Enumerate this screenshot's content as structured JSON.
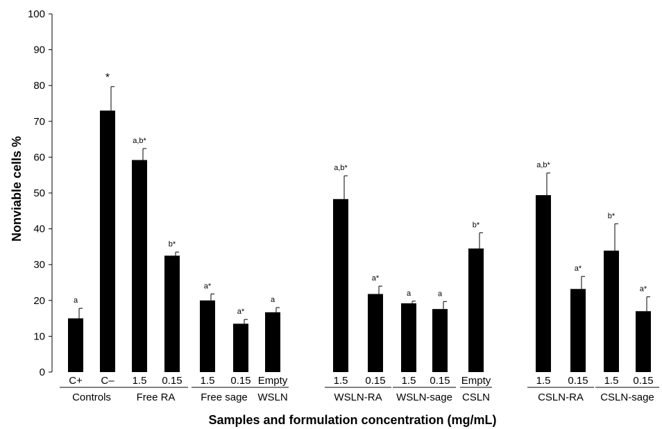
{
  "chart_data": {
    "type": "bar",
    "title": "",
    "xlabel": "Samples and formulation concentration (mg/mL)",
    "ylabel": "Nonviable cells %",
    "ylim": [
      0,
      100
    ],
    "yticks": [
      0,
      10,
      20,
      30,
      40,
      50,
      60,
      70,
      80,
      90,
      100
    ],
    "grid": false,
    "bars": [
      {
        "label": "C+",
        "value": 15.0,
        "error": 2.8,
        "annotation": "a"
      },
      {
        "label": "C–",
        "value": 73.0,
        "error": 6.7,
        "annotation": "*"
      },
      {
        "label": "1.5",
        "value": 59.2,
        "error": 3.2,
        "annotation": "a,b*"
      },
      {
        "label": "0.15",
        "value": 32.5,
        "error": 1.0,
        "annotation": "b*"
      },
      {
        "label": "1.5",
        "value": 20.0,
        "error": 1.8,
        "annotation": "a*"
      },
      {
        "label": "0.15",
        "value": 13.5,
        "error": 1.2,
        "annotation": "a*"
      },
      {
        "label": "Empty",
        "value": 16.7,
        "error": 1.3,
        "annotation": "a"
      },
      {
        "label": "1.5",
        "value": 48.3,
        "error": 6.5,
        "annotation": "a,b*"
      },
      {
        "label": "0.15",
        "value": 21.8,
        "error": 2.2,
        "annotation": "a*"
      },
      {
        "label": "1.5",
        "value": 19.2,
        "error": 0.6,
        "annotation": "a"
      },
      {
        "label": "0.15",
        "value": 17.6,
        "error": 2.1,
        "annotation": "a"
      },
      {
        "label": "Empty",
        "value": 34.5,
        "error": 4.4,
        "annotation": "b*"
      },
      {
        "label": "1.5",
        "value": 49.4,
        "error": 6.2,
        "annotation": "a,b*"
      },
      {
        "label": "0.15",
        "value": 23.2,
        "error": 3.5,
        "annotation": "a*"
      },
      {
        "label": "1.5",
        "value": 33.9,
        "error": 7.5,
        "annotation": "b*"
      },
      {
        "label": "0.15",
        "value": 17.0,
        "error": 4.0,
        "annotation": "a*"
      }
    ],
    "groups": [
      {
        "label": "Controls",
        "bars": [
          0,
          1
        ]
      },
      {
        "label": "Free RA",
        "bars": [
          2,
          3
        ]
      },
      {
        "label": "Free sage",
        "bars": [
          4,
          5
        ]
      },
      {
        "label": "WSLN",
        "bars": [
          6,
          6
        ]
      },
      {
        "label": "WSLN-RA",
        "bars": [
          7,
          8
        ]
      },
      {
        "label": "WSLN-sage",
        "bars": [
          9,
          10
        ]
      },
      {
        "label": "CSLN",
        "bars": [
          11,
          11
        ]
      },
      {
        "label": "CSLN-RA",
        "bars": [
          12,
          13
        ]
      },
      {
        "label": "CSLN-sage",
        "bars": [
          14,
          15
        ]
      }
    ],
    "colors": {
      "bar": "#000000",
      "axis": "#000000"
    }
  }
}
